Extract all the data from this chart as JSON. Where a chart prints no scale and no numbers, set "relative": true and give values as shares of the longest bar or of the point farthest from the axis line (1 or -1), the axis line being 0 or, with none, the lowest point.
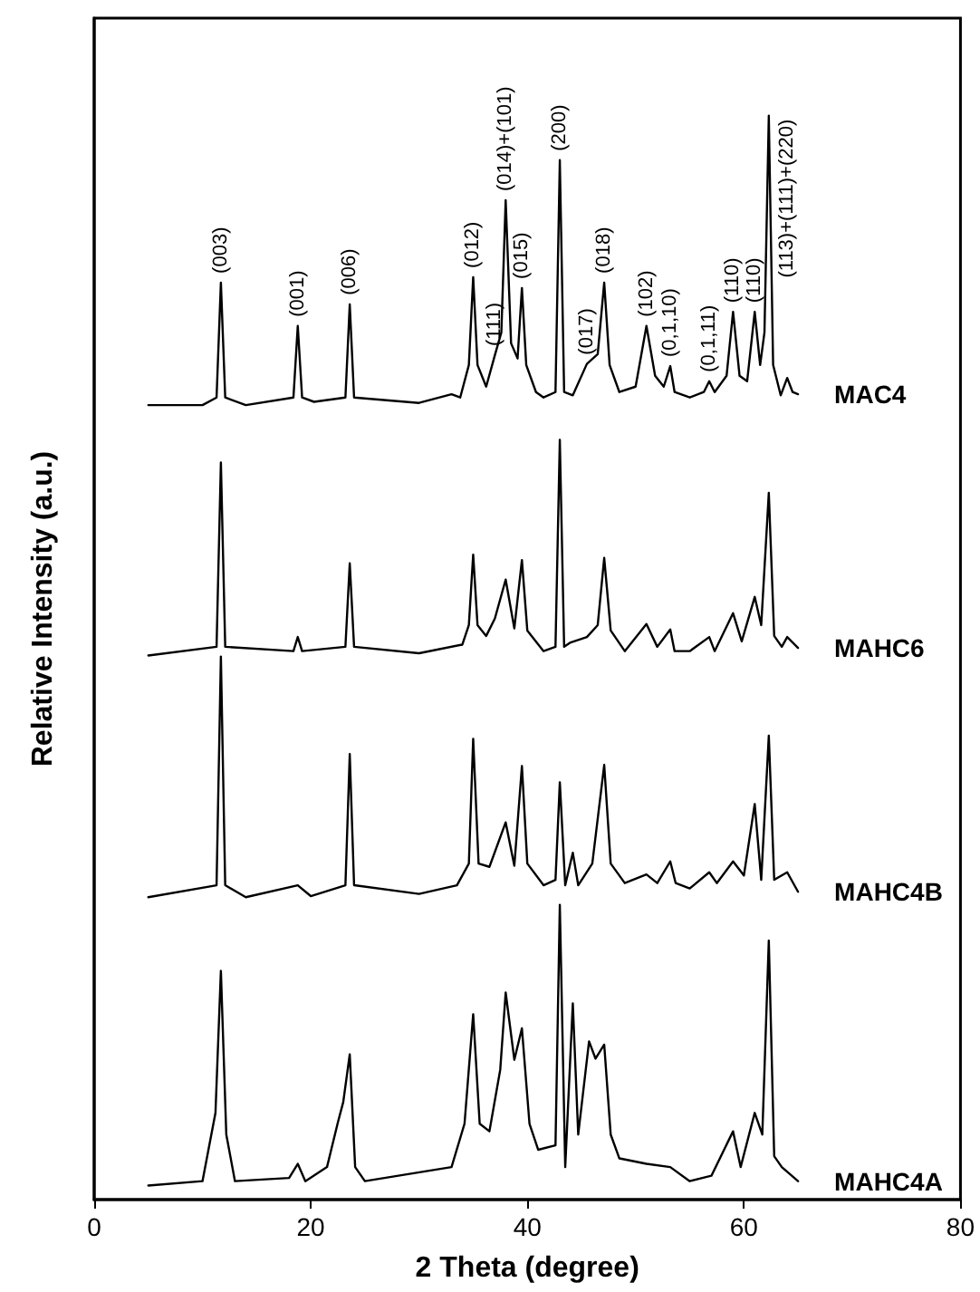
{
  "chart_data": {
    "type": "line",
    "relative": true,
    "xlabel": "2 Theta (degree)",
    "ylabel": "Relative Intensity (a.u.)",
    "xlim": [
      0,
      80
    ],
    "xticks": [
      0,
      20,
      40,
      60,
      80
    ],
    "grid": false,
    "legend": false,
    "marker": "none",
    "line_style": "solid",
    "series": [
      {
        "name": "MAC4",
        "color": "#000000",
        "x": [
          5,
          10,
          11.3,
          11.7,
          12.1,
          14,
          18.4,
          18.8,
          19.2,
          20.3,
          23.2,
          23.6,
          24,
          30,
          33,
          33.8,
          34.6,
          35,
          35.4,
          36.2,
          37,
          37.6,
          38,
          38.5,
          39.1,
          39.5,
          39.9,
          40.8,
          41.5,
          42.6,
          43,
          43.4,
          44.2,
          45.5,
          46.5,
          47.1,
          47.6,
          48.5,
          50,
          51,
          51.8,
          52.6,
          53.2,
          53.6,
          55,
          56.3,
          56.8,
          57.3,
          58.4,
          59,
          59.6,
          60.3,
          61,
          61.5,
          61.9,
          62.3,
          62.7,
          63.4,
          64,
          64.5,
          65
        ],
        "values": [
          0.733,
          0.733,
          0.74,
          0.846,
          0.74,
          0.733,
          0.74,
          0.806,
          0.74,
          0.736,
          0.74,
          0.826,
          0.74,
          0.735,
          0.743,
          0.74,
          0.77,
          0.851,
          0.77,
          0.75,
          0.779,
          0.8,
          0.922,
          0.79,
          0.776,
          0.841,
          0.77,
          0.745,
          0.74,
          0.745,
          0.959,
          0.745,
          0.742,
          0.771,
          0.78,
          0.846,
          0.77,
          0.745,
          0.75,
          0.806,
          0.76,
          0.75,
          0.769,
          0.745,
          0.74,
          0.745,
          0.755,
          0.745,
          0.76,
          0.819,
          0.76,
          0.755,
          0.819,
          0.77,
          0.8,
          1.0,
          0.77,
          0.742,
          0.758,
          0.745,
          0.743
        ]
      },
      {
        "name": "MAHC6",
        "color": "#000000",
        "x": [
          5,
          11.3,
          11.7,
          12.1,
          18.4,
          18.8,
          19.2,
          23.2,
          23.6,
          24,
          30,
          34,
          34.6,
          35,
          35.4,
          36.2,
          37,
          38,
          38.8,
          39.5,
          40,
          41.5,
          42.6,
          43,
          43.4,
          44,
          45.5,
          46.5,
          47.1,
          47.7,
          49,
          51,
          52,
          53.2,
          53.6,
          55,
          56.8,
          57.3,
          59,
          59.8,
          61,
          61.6,
          62.3,
          62.8,
          63.5,
          64,
          65
        ],
        "values": [
          0.502,
          0.51,
          0.68,
          0.51,
          0.506,
          0.519,
          0.506,
          0.51,
          0.587,
          0.51,
          0.504,
          0.512,
          0.53,
          0.595,
          0.53,
          0.52,
          0.536,
          0.572,
          0.527,
          0.59,
          0.525,
          0.506,
          0.51,
          0.701,
          0.51,
          0.514,
          0.519,
          0.53,
          0.592,
          0.525,
          0.506,
          0.531,
          0.51,
          0.526,
          0.506,
          0.506,
          0.519,
          0.506,
          0.541,
          0.515,
          0.556,
          0.53,
          0.652,
          0.52,
          0.51,
          0.519,
          0.509
        ]
      },
      {
        "name": "MAHC4B",
        "color": "#000000",
        "x": [
          5,
          11.3,
          11.7,
          12.1,
          14,
          18.8,
          20,
          23.2,
          23.6,
          24,
          30,
          33.5,
          34.6,
          35,
          35.5,
          36.5,
          38,
          38.8,
          39.5,
          40,
          41.5,
          42.6,
          43,
          43.5,
          44.2,
          44.7,
          46,
          47.1,
          47.7,
          49,
          51,
          52,
          53.2,
          53.7,
          55,
          56.8,
          57.5,
          59,
          60,
          61,
          61.6,
          62.3,
          62.8,
          64,
          65
        ],
        "values": [
          0.279,
          0.29,
          0.501,
          0.29,
          0.279,
          0.29,
          0.28,
          0.29,
          0.411,
          0.29,
          0.282,
          0.29,
          0.31,
          0.425,
          0.31,
          0.307,
          0.348,
          0.308,
          0.4,
          0.31,
          0.29,
          0.295,
          0.385,
          0.29,
          0.32,
          0.29,
          0.31,
          0.401,
          0.31,
          0.292,
          0.3,
          0.292,
          0.312,
          0.292,
          0.287,
          0.302,
          0.292,
          0.312,
          0.299,
          0.365,
          0.295,
          0.428,
          0.295,
          0.302,
          0.284
        ]
      },
      {
        "name": "MAHC4A",
        "color": "#000000",
        "x": [
          5,
          10,
          11.2,
          11.7,
          12.2,
          13,
          18,
          18.8,
          19.5,
          21.5,
          22.5,
          23,
          23.6,
          24.1,
          25,
          33,
          34.2,
          35,
          35.6,
          36.5,
          37.5,
          38,
          38.8,
          39.5,
          40.2,
          41,
          42.6,
          43,
          43.5,
          44.2,
          44.7,
          45.7,
          46.3,
          47.1,
          47.7,
          48.5,
          51,
          53.2,
          55,
          57,
          59,
          59.7,
          61,
          61.7,
          62.3,
          62.8,
          63.5,
          65
        ],
        "values": [
          0.013,
          0.017,
          0.08,
          0.211,
          0.06,
          0.017,
          0.02,
          0.033,
          0.017,
          0.03,
          0.071,
          0.09,
          0.134,
          0.03,
          0.017,
          0.03,
          0.07,
          0.171,
          0.07,
          0.063,
          0.12,
          0.191,
          0.129,
          0.158,
          0.07,
          0.046,
          0.05,
          0.272,
          0.03,
          0.181,
          0.06,
          0.146,
          0.13,
          0.143,
          0.06,
          0.038,
          0.033,
          0.03,
          0.017,
          0.022,
          0.063,
          0.03,
          0.08,
          0.06,
          0.239,
          0.04,
          0.03,
          0.017
        ]
      }
    ],
    "annotations": [
      {
        "text": "(003)",
        "x": 11.7,
        "y": 0.846
      },
      {
        "text": "(001)",
        "x": 18.8,
        "y": 0.806
      },
      {
        "text": "(006)",
        "x": 23.6,
        "y": 0.826
      },
      {
        "text": "(012)",
        "x": 35,
        "y": 0.851
      },
      {
        "text": "(111)",
        "x": 37,
        "y": 0.779
      },
      {
        "text": "(014)+(101)",
        "x": 38,
        "y": 0.922
      },
      {
        "text": "(015)",
        "x": 39.5,
        "y": 0.841
      },
      {
        "text": "(200)",
        "x": 43,
        "y": 0.959
      },
      {
        "text": "(017)",
        "x": 45.5,
        "y": 0.771
      },
      {
        "text": "(018)",
        "x": 47.1,
        "y": 0.846
      },
      {
        "text": "(102)",
        "x": 51,
        "y": 0.806
      },
      {
        "text": "(0,1,10)",
        "x": 53.2,
        "y": 0.769
      },
      {
        "text": "(0,1,11)",
        "x": 56.8,
        "y": 0.755
      },
      {
        "text": "(110)",
        "x": 59,
        "y": 0.819
      },
      {
        "text": "(110)",
        "x": 61,
        "y": 0.819
      },
      {
        "text": "(113)+(111)+(220)",
        "x": 62.3,
        "y": 1.0
      }
    ]
  }
}
